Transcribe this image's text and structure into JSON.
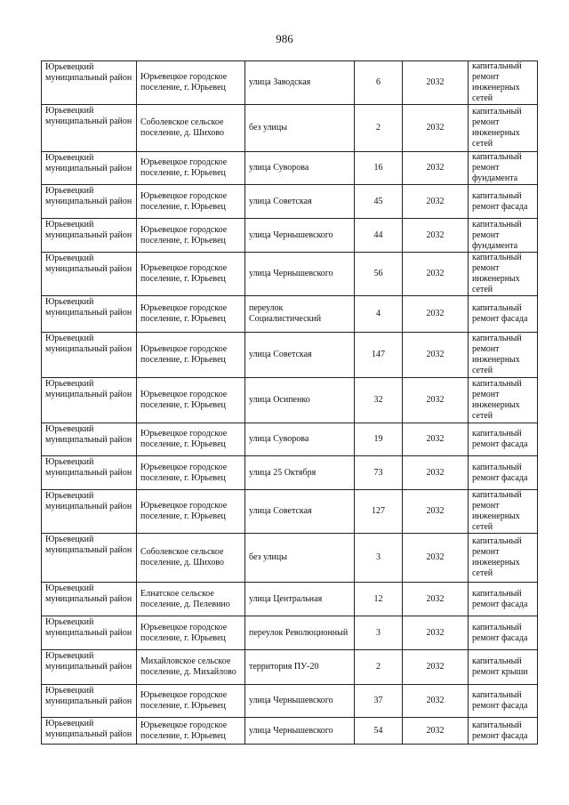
{
  "page_number": "986",
  "rows": [
    {
      "district": "Юрьевецкий муниципальный район",
      "settlement": "Юрьевецкое городское поселение, г. Юрьевец",
      "street": "улица Заводская",
      "house": "6",
      "year": "2032",
      "work": "капитальный ремонт инженерных сетей"
    },
    {
      "district": "Юрьевецкий муниципальный район",
      "settlement": "Соболевское сельское поселение, д. Шихово",
      "street": "без улицы",
      "house": "2",
      "year": "2032",
      "work": "капитальный ремонт инженерных сетей"
    },
    {
      "district": "Юрьевецкий муниципальный район",
      "settlement": "Юрьевецкое городское поселение, г. Юрьевец",
      "street": "улица Суворова",
      "house": "16",
      "year": "2032",
      "work": "капитальный ремонт фундамента"
    },
    {
      "district": "Юрьевецкий муниципальный район",
      "settlement": "Юрьевецкое городское поселение, г. Юрьевец",
      "street": "улица Советская",
      "house": "45",
      "year": "2032",
      "work": "капитальный ремонт фасада"
    },
    {
      "district": "Юрьевецкий муниципальный район",
      "settlement": "Юрьевецкое городское поселение, г. Юрьевец",
      "street": "улица Чернышевского",
      "house": "44",
      "year": "2032",
      "work": "капитальный ремонт фундамента"
    },
    {
      "district": "Юрьевецкий муниципальный район",
      "settlement": "Юрьевецкое городское поселение, г. Юрьевец",
      "street": "улица Чернышевского",
      "house": "56",
      "year": "2032",
      "work": "капитальный ремонт инженерных сетей"
    },
    {
      "district": "Юрьевецкий муниципальный район",
      "settlement": "Юрьевецкое городское поселение, г. Юрьевец",
      "street": "переулок Социалистический",
      "house": "4",
      "year": "2032",
      "work": "капитальный ремонт фасада"
    },
    {
      "district": "Юрьевецкий муниципальный район",
      "settlement": "Юрьевецкое городское поселение, г. Юрьевец",
      "street": "улица Советская",
      "house": "147",
      "year": "2032",
      "work": "капитальный ремонт инженерных сетей"
    },
    {
      "district": "Юрьевецкий муниципальный район",
      "settlement": "Юрьевецкое городское поселение, г. Юрьевец",
      "street": "улица Осипенко",
      "house": "32",
      "year": "2032",
      "work": "капитальный ремонт инженерных сетей"
    },
    {
      "district": "Юрьевецкий муниципальный район",
      "settlement": "Юрьевецкое городское поселение, г. Юрьевец",
      "street": "улица Суворова",
      "house": "19",
      "year": "2032",
      "work": "капитальный ремонт фасада"
    },
    {
      "district": "Юрьевецкий муниципальный район",
      "settlement": "Юрьевецкое городское поселение, г. Юрьевец",
      "street": "улица 25 Октября",
      "house": "73",
      "year": "2032",
      "work": "капитальный ремонт фасада"
    },
    {
      "district": "Юрьевецкий муниципальный район",
      "settlement": "Юрьевецкое городское поселение, г. Юрьевец",
      "street": "улица Советская",
      "house": "127",
      "year": "2032",
      "work": "капитальный ремонт инженерных сетей"
    },
    {
      "district": "Юрьевецкий муниципальный район",
      "settlement": "Соболевское сельское поселение, д. Шихово",
      "street": "без улицы",
      "house": "3",
      "year": "2032",
      "work": "капитальный ремонт инженерных сетей"
    },
    {
      "district": "Юрьевецкий муниципальный район",
      "settlement": "Елнатское сельское поселение, д. Пелевино",
      "street": "улица Центральная",
      "house": "12",
      "year": "2032",
      "work": "капитальный ремонт фасада"
    },
    {
      "district": "Юрьевецкий муниципальный район",
      "settlement": "Юрьевецкое городское поселение, г. Юрьевец",
      "street": "переулок Революционный",
      "house": "3",
      "year": "2032",
      "work": "капитальный ремонт фасада"
    },
    {
      "district": "Юрьевецкий муниципальный район",
      "settlement": "Михайловское сельское поселение, д. Михайлово",
      "street": "территория ПУ-20",
      "house": "2",
      "year": "2032",
      "work": "капитальный ремонт крыши"
    },
    {
      "district": "Юрьевецкий муниципальный район",
      "settlement": "Юрьевецкое городское поселение, г. Юрьевец",
      "street": "улица Чернышевского",
      "house": "37",
      "year": "2032",
      "work": "капитальный ремонт фасада"
    },
    {
      "district": "Юрьевецкий муниципальный район",
      "settlement": "Юрьевецкое городское поселение, г. Юрьевец",
      "street": "улица Чернышевского",
      "house": "54",
      "year": "2032",
      "work": "капитальный ремонт фасада"
    }
  ]
}
